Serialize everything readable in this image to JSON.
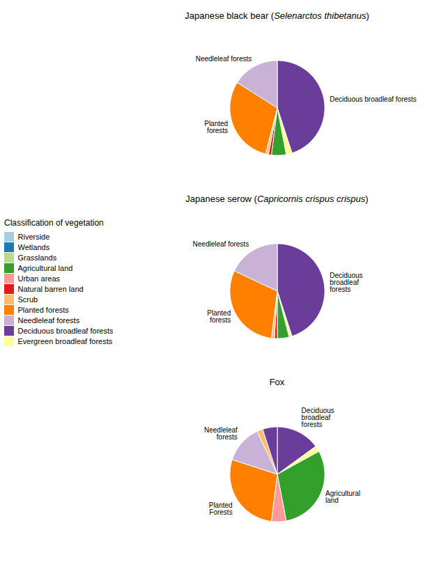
{
  "chart_data": [
    {
      "type": "pie",
      "title": "Japanese black bear (Selenarctos thibetanus)",
      "categories": [
        "Deciduous broadleaf forests",
        "Evergreen broadleaf forests",
        "Agricultural land",
        "Natural barren land",
        "Scrub",
        "Planted forests",
        "Needleleaf forests"
      ],
      "values": [
        45,
        2,
        5,
        1,
        1,
        30,
        16
      ],
      "annotations": [
        "Deciduous broadleaf forests",
        "Planted\nforests",
        "Needleleaf forests"
      ],
      "legend": "left",
      "legend_title": "Classification of vegetation",
      "legend_entries": [
        "Riverside",
        "Wetlands",
        "Grasslands",
        "Agricultural land",
        "Urban areas",
        "Natural barren land",
        "Scrub",
        "Planted forests",
        "Needleleaf forests",
        "Deciduous broadleaf forests",
        "Evergreen broadleaf forests"
      ]
    },
    {
      "type": "pie",
      "title": "Japanese serow (Capricornis crispus crispus)",
      "categories": [
        "Deciduous broadleaf forests",
        "Evergreen broadleaf forests",
        "Agricultural land",
        "Natural barren land",
        "Scrub",
        "Planted forests",
        "Needleleaf forests"
      ],
      "values": [
        45,
        1,
        4,
        1,
        1,
        30,
        18
      ],
      "annotations": [
        "Deciduous\nbroadleaf\nforests",
        "Planted\nforests",
        "Needleleaf forests"
      ]
    },
    {
      "type": "pie",
      "title": "Fox",
      "categories": [
        "Deciduous broadleaf forests",
        "Evergreen broadleaf forests",
        "Agricultural land",
        "Urban areas",
        "Planted forests",
        "Needleleaf forests",
        "Scrub",
        "Deciduous broadleaf forests"
      ],
      "values": [
        15,
        2,
        30,
        5,
        28,
        13,
        2,
        5
      ],
      "annotations": [
        "Deciduous\nbroadleaf\nforests",
        "Agricultural\nland",
        "Planted\nForests",
        "Needleleaf\nforests"
      ]
    }
  ]
}
